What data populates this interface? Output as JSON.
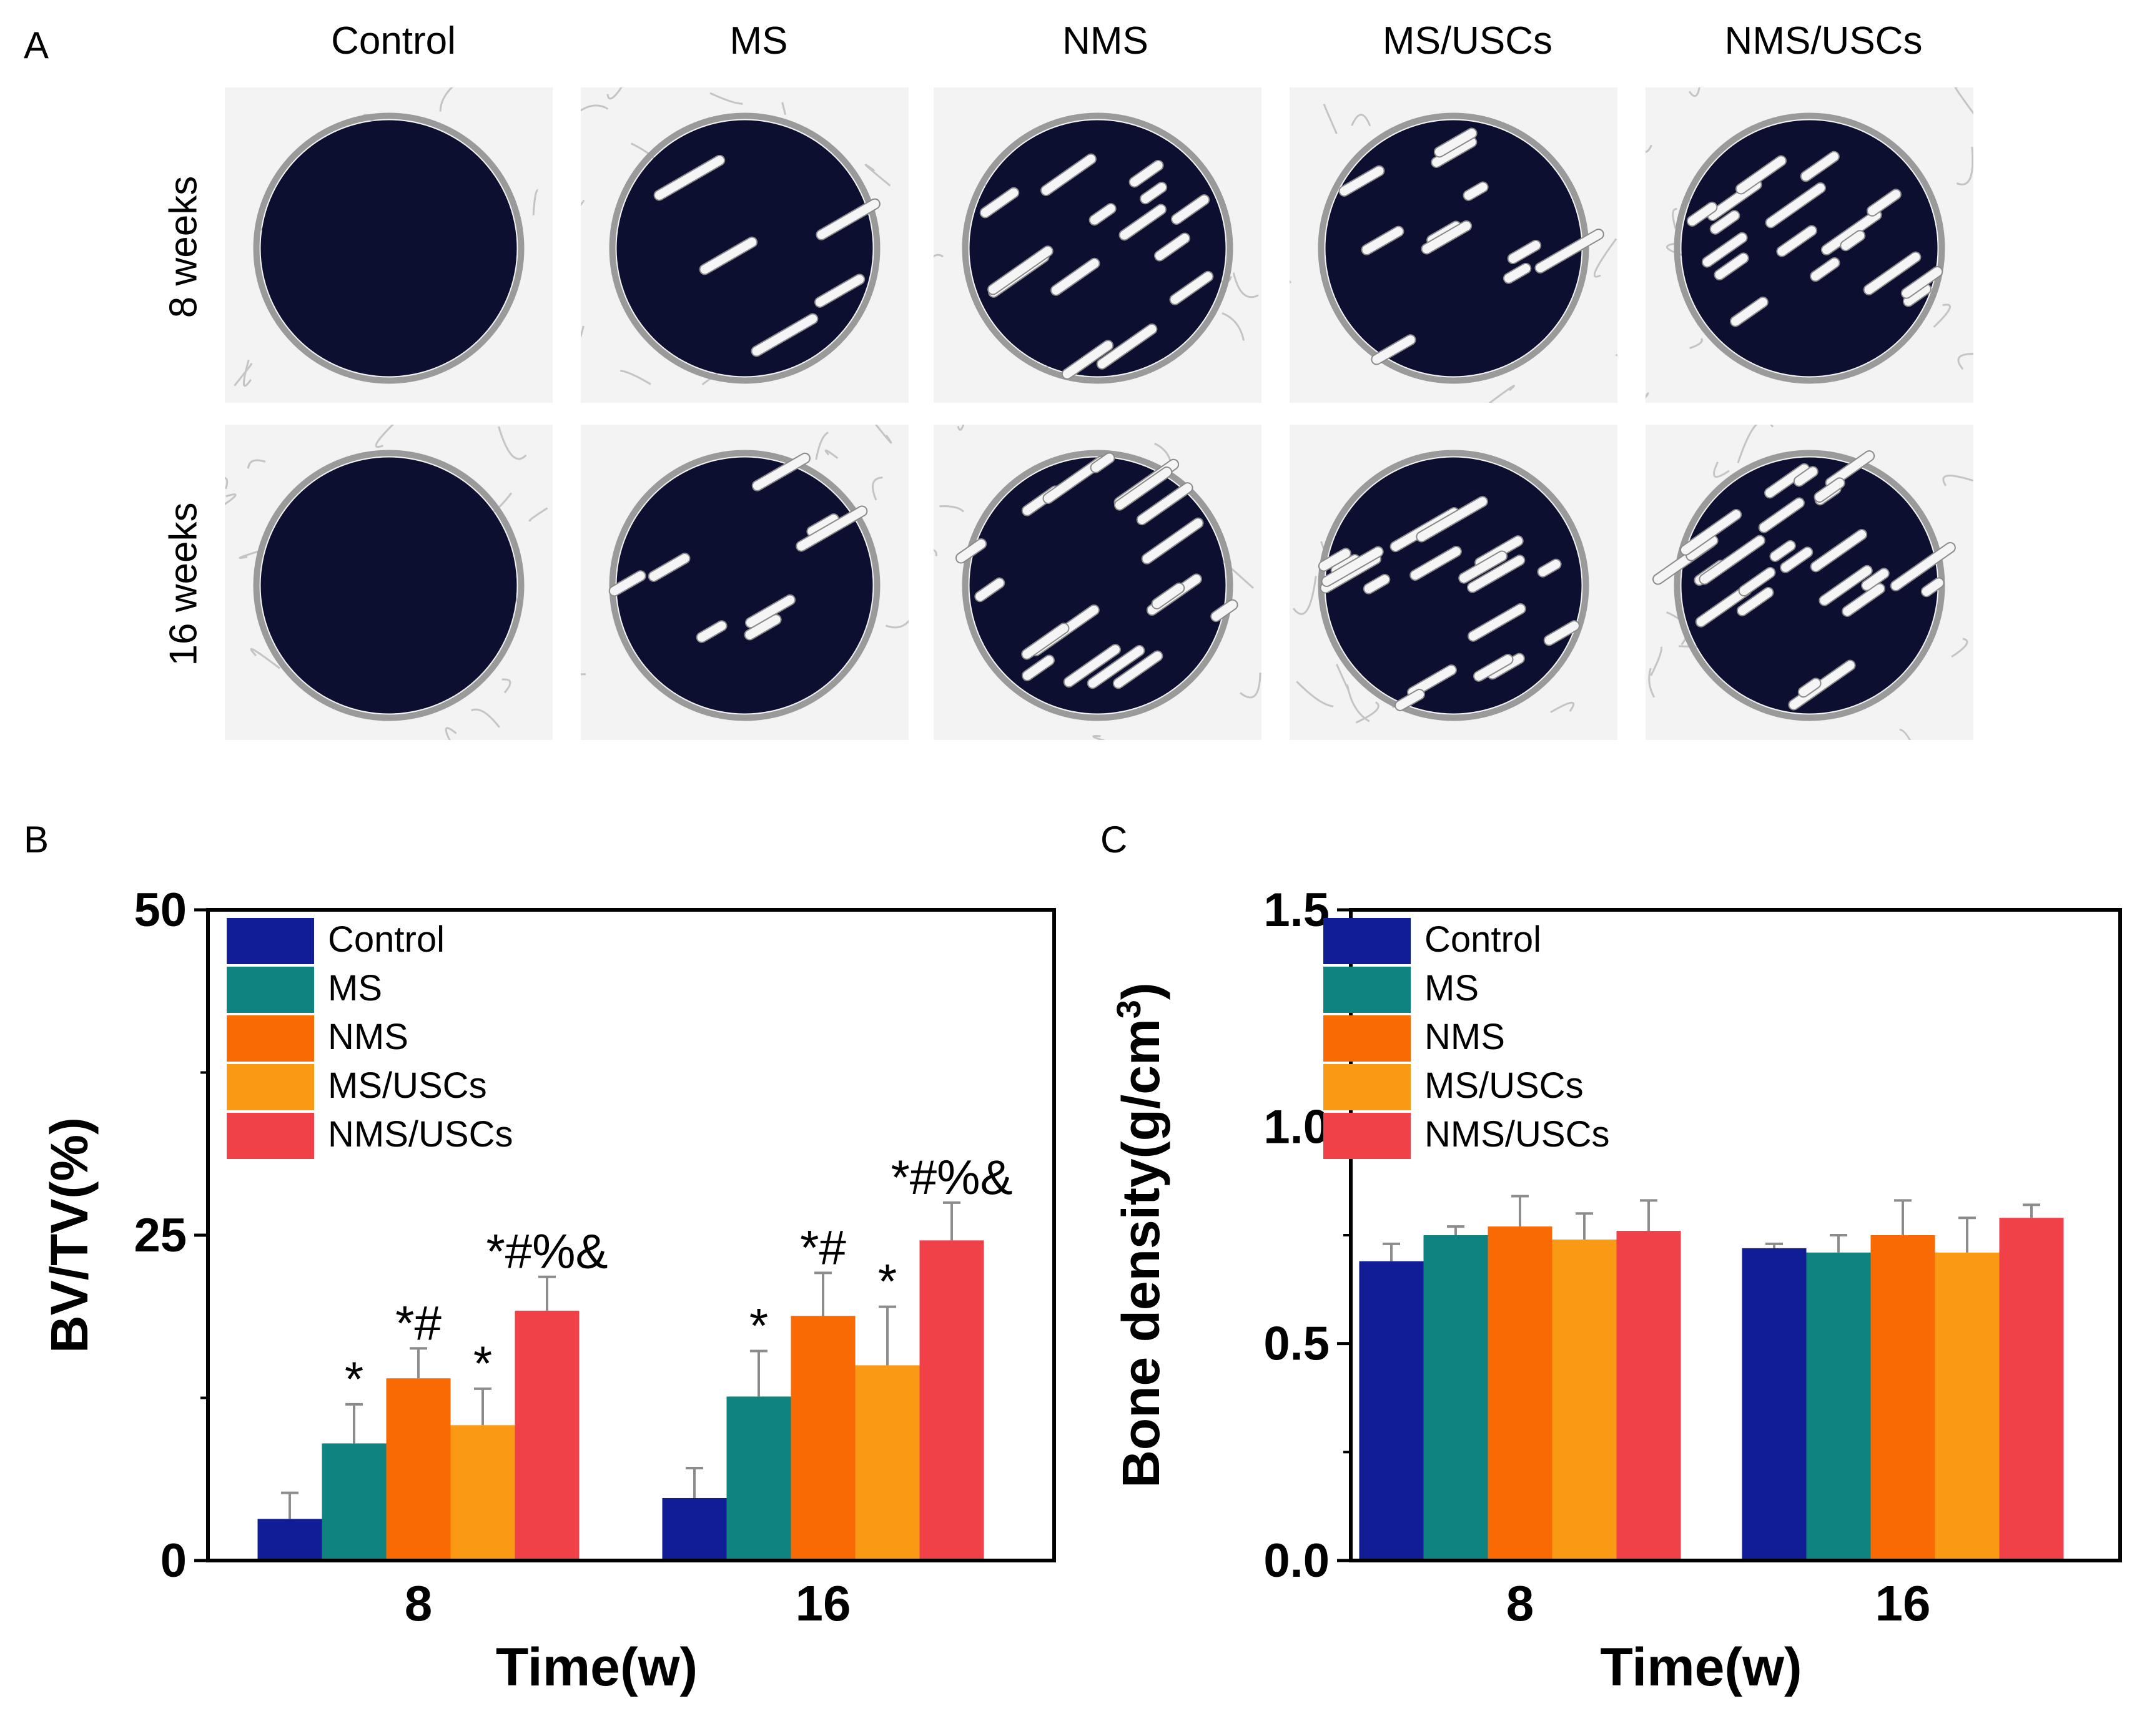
{
  "panel_a": {
    "label": "A",
    "columns": [
      "Control",
      "MS",
      "NMS",
      "MS/USCs",
      "NMS/USCs"
    ],
    "rows": [
      "8 weeks",
      "16 weeks"
    ],
    "scaffold_density_8w": [
      0,
      0.15,
      0.45,
      0.35,
      0.55
    ],
    "scaffold_density_16w": [
      0,
      0.25,
      0.6,
      0.6,
      0.8
    ]
  },
  "panel_b": {
    "label": "B"
  },
  "panel_c": {
    "label": "C"
  },
  "colors": {
    "Control": "#111d96",
    "MS": "#0f8380",
    "NMS": "#fa6a04",
    "MS/USCs": "#fa9a14",
    "NMS/USCs": "#f04048",
    "defect": "#0d0f30"
  },
  "chart_data": [
    {
      "type": "bar",
      "panel": "B",
      "categories": [
        "8",
        "16"
      ],
      "series": [
        {
          "name": "Control",
          "values": [
            3.2,
            4.8
          ],
          "errors": [
            2.0,
            2.3
          ],
          "annotations": [
            "",
            ""
          ]
        },
        {
          "name": "MS",
          "values": [
            9.0,
            12.6
          ],
          "errors": [
            3.0,
            3.5
          ],
          "annotations": [
            "*",
            "*"
          ]
        },
        {
          "name": "NMS",
          "values": [
            14.0,
            18.8
          ],
          "errors": [
            2.3,
            3.3
          ],
          "annotations": [
            "*#",
            "*#"
          ]
        },
        {
          "name": "MS/USCs",
          "values": [
            10.4,
            15.0
          ],
          "errors": [
            2.8,
            4.5
          ],
          "annotations": [
            "*",
            "*"
          ]
        },
        {
          "name": "NMS/USCs",
          "values": [
            19.2,
            24.6
          ],
          "errors": [
            2.6,
            2.9
          ],
          "annotations": [
            "*#%&",
            "*#%&"
          ]
        }
      ],
      "xlabel": "Time(w)",
      "ylabel": "BV/TV(%)",
      "ylim": [
        0,
        50
      ],
      "yticks": [
        "0",
        "25",
        "50"
      ],
      "legend": "top-left"
    },
    {
      "type": "bar",
      "panel": "C",
      "categories": [
        "8",
        "16"
      ],
      "series": [
        {
          "name": "Control",
          "values": [
            0.69,
            0.72
          ],
          "errors": [
            0.04,
            0.01
          ]
        },
        {
          "name": "MS",
          "values": [
            0.75,
            0.71
          ],
          "errors": [
            0.02,
            0.04
          ]
        },
        {
          "name": "NMS",
          "values": [
            0.77,
            0.75
          ],
          "errors": [
            0.07,
            0.08
          ]
        },
        {
          "name": "MS/USCs",
          "values": [
            0.74,
            0.71
          ],
          "errors": [
            0.06,
            0.08
          ]
        },
        {
          "name": "NMS/USCs",
          "values": [
            0.76,
            0.79
          ],
          "errors": [
            0.07,
            0.03
          ]
        }
      ],
      "xlabel": "Time(w)",
      "ylabel": "Bone density(g/cm",
      "ylabel_sup": "3",
      "ylabel_close": ")",
      "ylim": [
        0,
        1.5
      ],
      "yticks": [
        "0.0",
        "0.5",
        "1.0",
        "1.5"
      ],
      "legend": "top-left"
    }
  ]
}
